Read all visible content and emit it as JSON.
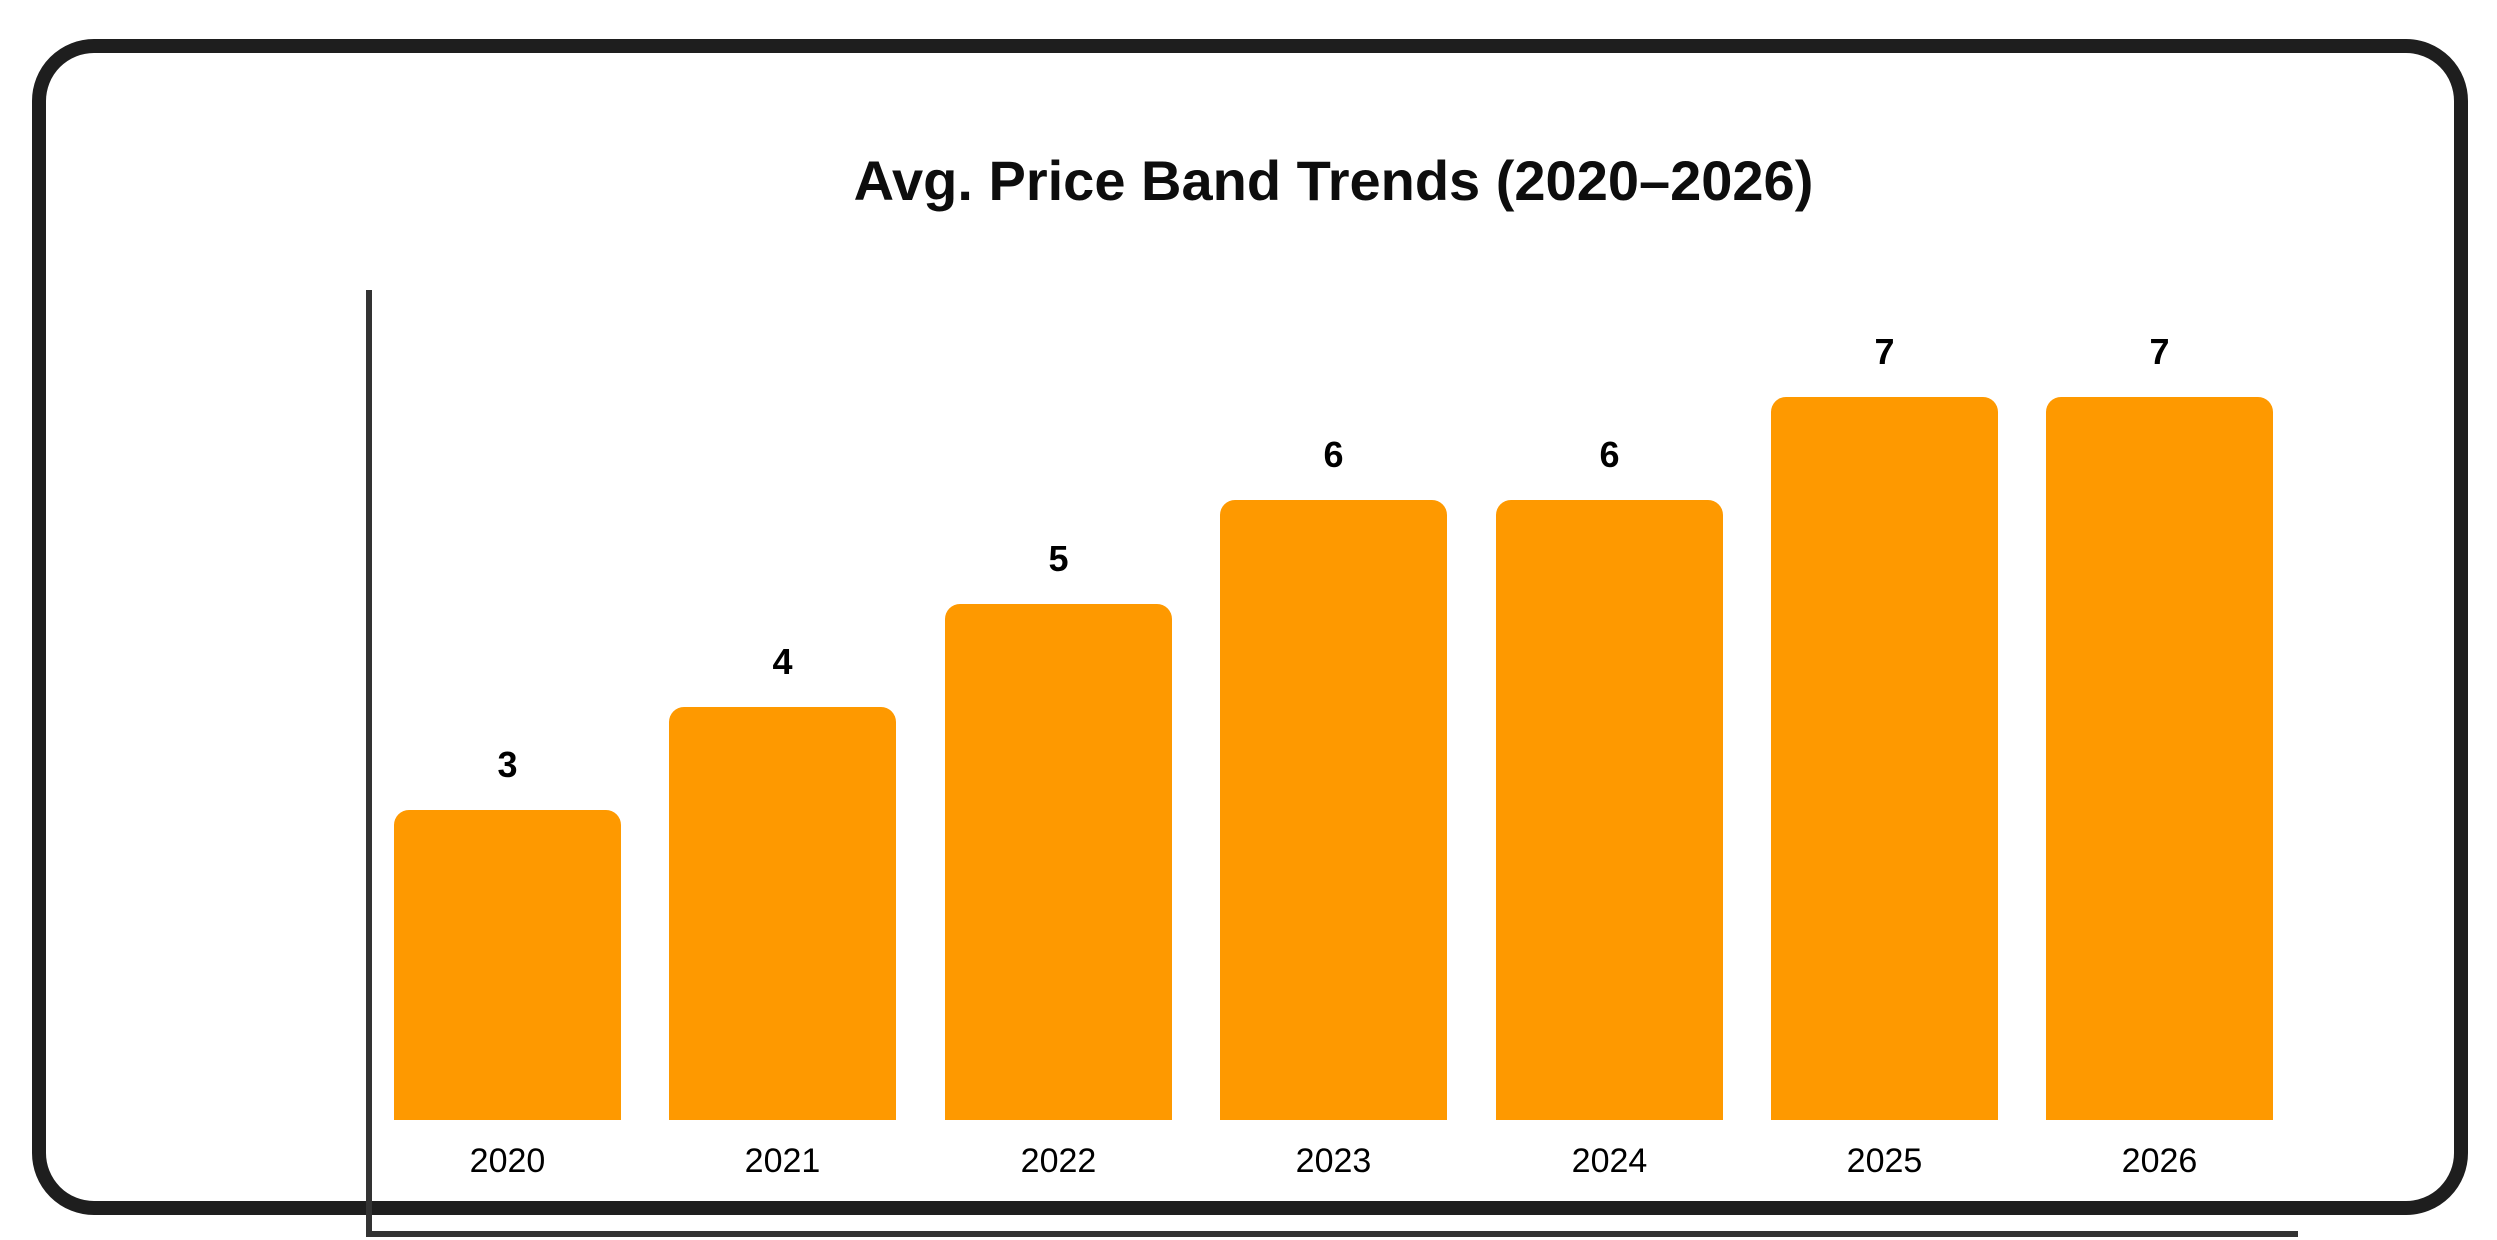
{
  "chart_data": {
    "type": "bar",
    "title": "Avg. Price Band Trends (2020–2026)",
    "categories": [
      "2020",
      "2021",
      "2022",
      "2023",
      "2024",
      "2025",
      "2026"
    ],
    "values": [
      3,
      4,
      5,
      6,
      6,
      7,
      7
    ],
    "value_labels": [
      "3",
      "4",
      "5",
      "6",
      "6",
      "7",
      "7"
    ],
    "xlabel": "",
    "ylabel": "",
    "ylim": [
      0,
      8
    ],
    "grid": false,
    "legend": null,
    "bar_color": "#FE9900",
    "axis_color": "#333333",
    "text_color": "#000000",
    "frame_border_color": "#1E1E1E"
  }
}
